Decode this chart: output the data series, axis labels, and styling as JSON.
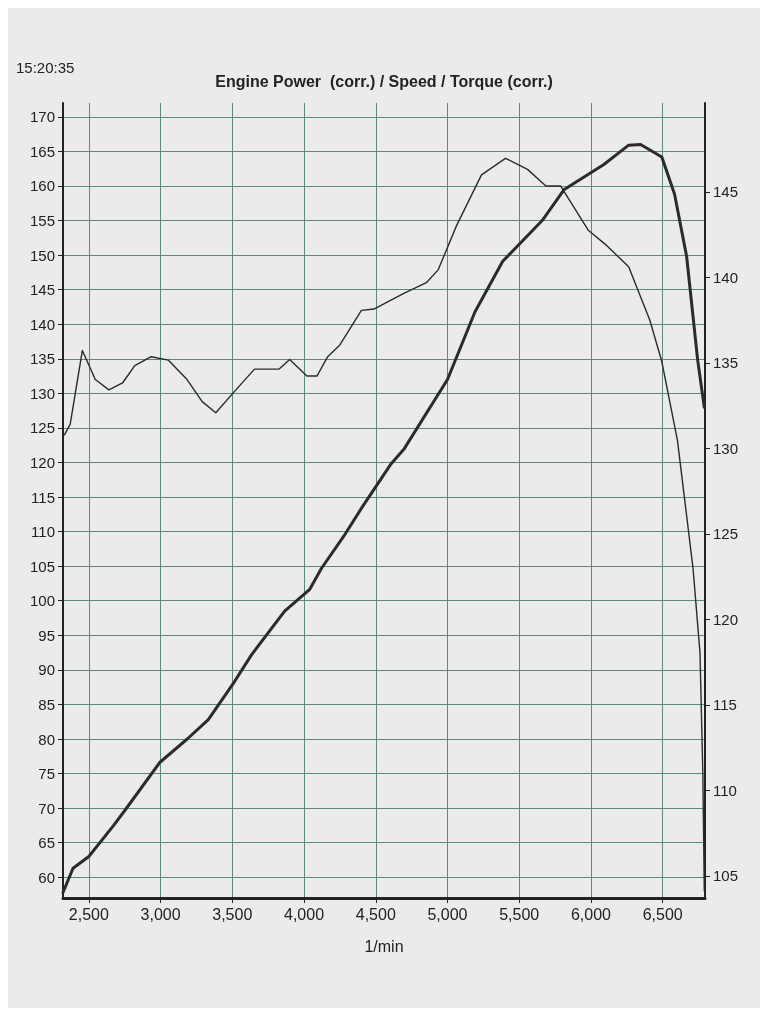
{
  "chart_data": {
    "type": "line",
    "title": "Engine Power  (corr.) / Speed / Torque (corr.)",
    "xlabel": "1/min",
    "annotations": [
      "15:20:35"
    ],
    "xlim": [
      2320,
      6795
    ],
    "xticks": [
      {
        "value": 2500,
        "label": "2,500"
      },
      {
        "value": 3000,
        "label": "3,000"
      },
      {
        "value": 3500,
        "label": "3,500"
      },
      {
        "value": 4000,
        "label": "4,000"
      },
      {
        "value": 4500,
        "label": "4,500"
      },
      {
        "value": 5000,
        "label": "5,000"
      },
      {
        "value": 5500,
        "label": "5,500"
      },
      {
        "value": 6000,
        "label": "6,000"
      },
      {
        "value": 6500,
        "label": "6,500"
      }
    ],
    "ylim": [
      57,
      172
    ],
    "yticks": [
      60,
      65,
      70,
      75,
      80,
      85,
      90,
      95,
      100,
      105,
      110,
      115,
      120,
      125,
      130,
      135,
      140,
      145,
      150,
      155,
      160,
      165,
      170
    ],
    "y2lim": [
      103.7,
      150.2
    ],
    "y2ticks": [
      105,
      110,
      115,
      120,
      125,
      130,
      135,
      140,
      145
    ],
    "grid": true,
    "marker": "none",
    "line_style": "solid",
    "series": [
      {
        "color": "#2b2b2b",
        "x": [
          2320,
          2390,
          2500,
          2673,
          2756,
          2994,
          3186,
          3333,
          3506,
          3635,
          3865,
          4038,
          4122,
          4276,
          4404,
          4603,
          4699,
          5000,
          5192,
          5385,
          5660,
          5814,
          6090,
          6263,
          6346,
          6494,
          6583,
          6667,
          6744,
          6790
        ],
        "values": [
          57.8,
          61.3,
          63,
          67.5,
          69.8,
          76.6,
          80,
          82.8,
          88,
          92.2,
          98.5,
          101.6,
          104.7,
          109.3,
          113.5,
          119.7,
          122,
          132,
          141.8,
          149.1,
          155,
          159.5,
          163.1,
          165.9,
          166,
          164.2,
          158.8,
          149.8,
          134.8,
          128
        ]
      },
      {
        "color": "#2b2b2b",
        "x": [
          2330,
          2370,
          2455,
          2545,
          2640,
          2735,
          2820,
          2935,
          3055,
          3185,
          3290,
          3385,
          3525,
          3655,
          3825,
          3900,
          4020,
          4090,
          4165,
          4250,
          4400,
          4487,
          4699,
          4853,
          4936,
          5064,
          5237,
          5404,
          5558,
          5686,
          5788,
          5981,
          6109,
          6263,
          6410,
          6494,
          6603,
          6712,
          6760,
          6780,
          6790
        ],
        "values": [
          124,
          125.5,
          136.2,
          132,
          130.5,
          131.5,
          134,
          135.3,
          134.8,
          132,
          128.8,
          127.2,
          130.5,
          133.5,
          133.5,
          134.9,
          132.5,
          132.5,
          135.3,
          137,
          142,
          142.2,
          144.5,
          146,
          147.9,
          154.3,
          161.6,
          164,
          162.4,
          160,
          160,
          153.6,
          151.4,
          148.3,
          140.6,
          134.6,
          123.2,
          104.6,
          92.5,
          75,
          58
        ]
      }
    ]
  }
}
